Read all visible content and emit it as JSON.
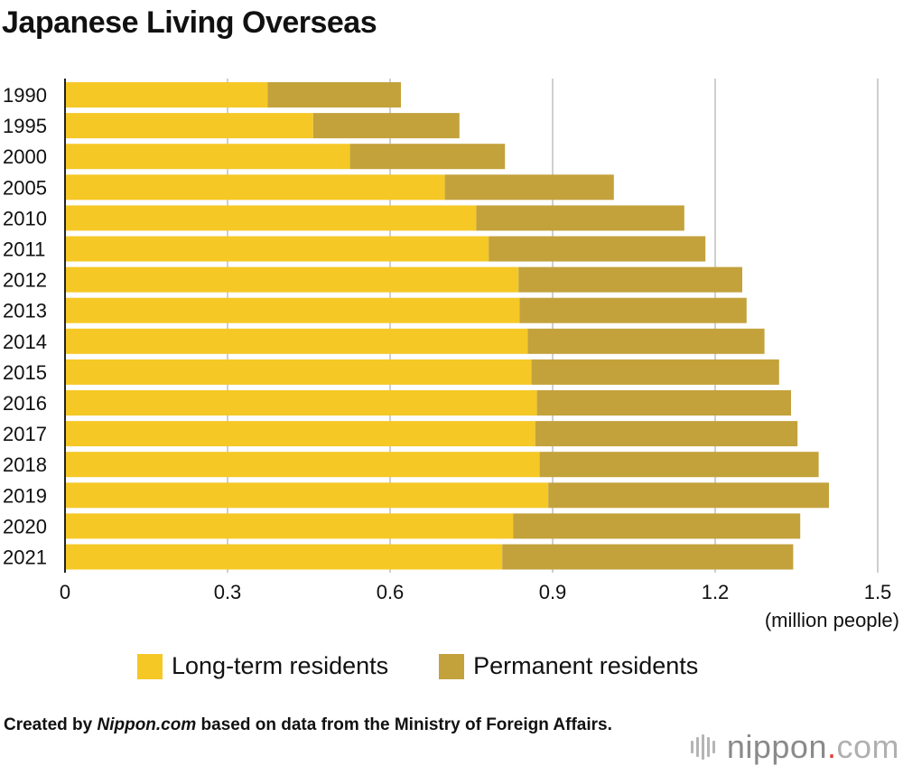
{
  "title": "Japanese Living Overseas",
  "unit_label": "(million people)",
  "source": {
    "prefix": "Created by ",
    "site": "Nippon.com",
    "suffix": " based on data from the Ministry of Foreign Affairs."
  },
  "logo": {
    "main": "nippon",
    "dot": ".",
    "com": "com"
  },
  "colors": {
    "long_term": "#f5c826",
    "permanent": "#c3a23c",
    "grid": "#cfcfcf",
    "axis": "#222222"
  },
  "chart_data": {
    "type": "bar",
    "orientation": "horizontal",
    "stacked": true,
    "categories": [
      "1990",
      "1995",
      "2000",
      "2005",
      "2010",
      "2011",
      "2012",
      "2013",
      "2014",
      "2015",
      "2016",
      "2017",
      "2018",
      "2019",
      "2020",
      "2021"
    ],
    "series": [
      {
        "name": "Long-term residents",
        "color": "#f5c826",
        "values": [
          0.374,
          0.458,
          0.526,
          0.701,
          0.759,
          0.782,
          0.837,
          0.839,
          0.854,
          0.861,
          0.871,
          0.868,
          0.876,
          0.892,
          0.827,
          0.807
        ]
      },
      {
        "name": "Permanent residents",
        "color": "#c3a23c",
        "values": [
          0.246,
          0.27,
          0.286,
          0.312,
          0.384,
          0.4,
          0.413,
          0.419,
          0.437,
          0.457,
          0.469,
          0.484,
          0.515,
          0.518,
          0.53,
          0.537
        ]
      }
    ],
    "xlim": [
      0,
      1.5
    ],
    "xticks": [
      "0",
      "0.3",
      "0.6",
      "0.9",
      "1.2",
      "1.5"
    ],
    "xlabel": "(million people)",
    "grid": true,
    "legend_position": "bottom"
  }
}
